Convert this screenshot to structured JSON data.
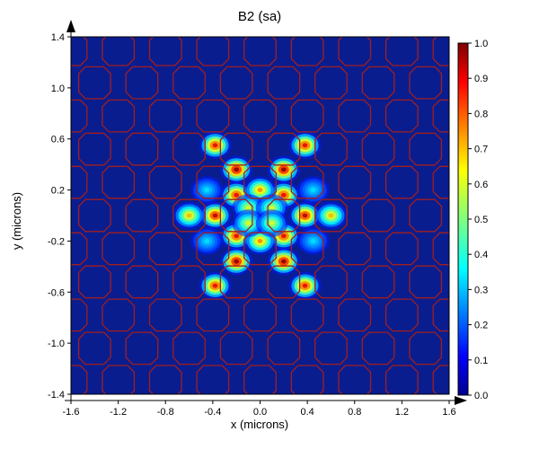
{
  "chart_data": {
    "type": "heatmap",
    "title": "B2 (sa)",
    "xlabel": "x (microns)",
    "ylabel": "y (microns)",
    "xlim": [
      -1.6,
      1.6
    ],
    "ylim": [
      -1.4,
      1.4
    ],
    "x_ticks": [
      "-1.6",
      "-1.2",
      "-0.8",
      "-0.4",
      "0.0",
      "0.4",
      "0.8",
      "1.2",
      "1.6"
    ],
    "y_ticks": [
      "1.4",
      "1.0",
      "0.6",
      "0.2",
      "-0.2",
      "-0.6",
      "-1.0",
      "-1.4"
    ],
    "colorbar": {
      "min": 0.0,
      "max": 1.0,
      "ticks": [
        "1.0",
        "0.9",
        "0.8",
        "0.7",
        "0.6",
        "0.5",
        "0.4",
        "0.3",
        "0.2",
        "0.1",
        "0.0"
      ],
      "colormap": "jet"
    },
    "background_color": "#0a1d8f",
    "hole_outline_color": "#a11e1e",
    "lattice": {
      "shape": "octagon",
      "pitch": 0.4,
      "rows_y": [
        1.3,
        1.04,
        0.78,
        0.52,
        0.26,
        0.0,
        -0.26,
        -0.52,
        -0.78,
        -1.04,
        -1.3
      ],
      "odd_row_offset": 0.2,
      "hole_width": 0.27
    },
    "hot_spots": [
      {
        "x": -0.2,
        "y": 0.36,
        "v": 1.0
      },
      {
        "x": 0.2,
        "y": 0.36,
        "v": 1.0
      },
      {
        "x": -0.2,
        "y": -0.36,
        "v": 1.0
      },
      {
        "x": 0.2,
        "y": -0.36,
        "v": 1.0
      },
      {
        "x": -0.38,
        "y": 0.0,
        "v": 0.95
      },
      {
        "x": 0.38,
        "y": 0.0,
        "v": 0.95
      },
      {
        "x": -0.2,
        "y": 0.16,
        "v": 0.9
      },
      {
        "x": 0.2,
        "y": 0.16,
        "v": 0.9
      },
      {
        "x": -0.2,
        "y": -0.16,
        "v": 0.9
      },
      {
        "x": 0.2,
        "y": -0.16,
        "v": 0.9
      },
      {
        "x": 0.0,
        "y": 0.2,
        "v": 0.75
      },
      {
        "x": 0.0,
        "y": -0.2,
        "v": 0.75
      },
      {
        "x": -0.1,
        "y": 0.06,
        "v": 0.6
      },
      {
        "x": 0.1,
        "y": 0.06,
        "v": 0.6
      },
      {
        "x": -0.1,
        "y": -0.06,
        "v": 0.6
      },
      {
        "x": 0.1,
        "y": -0.06,
        "v": 0.6
      },
      {
        "x": -0.38,
        "y": 0.55,
        "v": 0.9
      },
      {
        "x": 0.38,
        "y": 0.55,
        "v": 0.9
      },
      {
        "x": -0.38,
        "y": -0.55,
        "v": 0.9
      },
      {
        "x": 0.38,
        "y": -0.55,
        "v": 0.9
      },
      {
        "x": -0.6,
        "y": 0.0,
        "v": 0.7
      },
      {
        "x": 0.6,
        "y": 0.0,
        "v": 0.7
      },
      {
        "x": -0.45,
        "y": 0.2,
        "v": 0.35
      },
      {
        "x": 0.45,
        "y": 0.2,
        "v": 0.35
      },
      {
        "x": -0.45,
        "y": -0.2,
        "v": 0.35
      },
      {
        "x": 0.45,
        "y": -0.2,
        "v": 0.35
      }
    ]
  }
}
